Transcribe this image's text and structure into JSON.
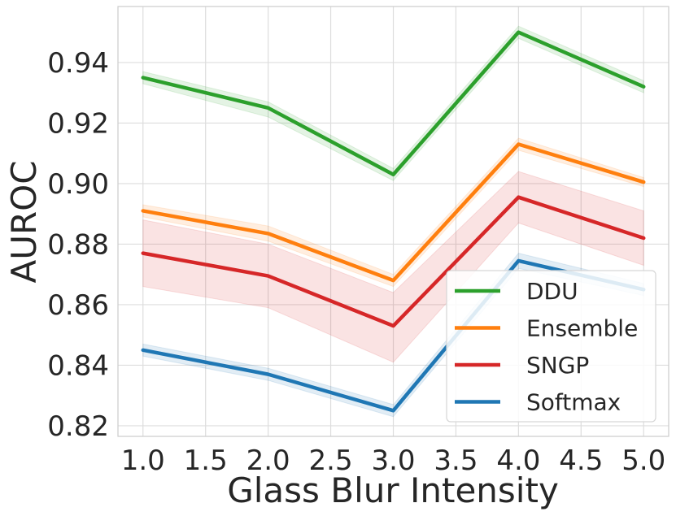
{
  "chart_data": {
    "type": "line",
    "title": "",
    "xlabel": "Glass Blur Intensity",
    "ylabel": "AUROC",
    "xlim": [
      0.8,
      5.2
    ],
    "ylim": [
      0.8165,
      0.9585
    ],
    "x": [
      1.0,
      2.0,
      3.0,
      4.0,
      5.0
    ],
    "xticks": [
      1.0,
      1.5,
      2.0,
      2.5,
      3.0,
      3.5,
      4.0,
      4.5,
      5.0
    ],
    "xtick_labels": [
      "1.0",
      "1.5",
      "2.0",
      "2.5",
      "3.0",
      "3.5",
      "4.0",
      "4.5",
      "5.0"
    ],
    "yticks": [
      0.82,
      0.84,
      0.86,
      0.88,
      0.9,
      0.92,
      0.94
    ],
    "ytick_labels": [
      "0.82",
      "0.84",
      "0.86",
      "0.88",
      "0.90",
      "0.92",
      "0.94"
    ],
    "grid": true,
    "legend_position": "bottom-right",
    "series": [
      {
        "name": "DDU",
        "color": "#2ca02c",
        "values": [
          0.935,
          0.925,
          0.903,
          0.95,
          0.932
        ],
        "lower": [
          0.933,
          0.922,
          0.901,
          0.948,
          0.93
        ],
        "upper": [
          0.937,
          0.927,
          0.905,
          0.952,
          0.934
        ]
      },
      {
        "name": "Ensemble",
        "color": "#ff7f0e",
        "values": [
          0.891,
          0.8835,
          0.868,
          0.913,
          0.9005
        ],
        "lower": [
          0.889,
          0.881,
          0.866,
          0.911,
          0.899
        ],
        "upper": [
          0.893,
          0.886,
          0.87,
          0.915,
          0.902
        ]
      },
      {
        "name": "SNGP",
        "color": "#d62728",
        "values": [
          0.877,
          0.8695,
          0.853,
          0.8955,
          0.882
        ],
        "lower": [
          0.866,
          0.859,
          0.841,
          0.887,
          0.873
        ],
        "upper": [
          0.888,
          0.88,
          0.864,
          0.904,
          0.891
        ]
      },
      {
        "name": "Softmax",
        "color": "#1f77b4",
        "values": [
          0.845,
          0.837,
          0.825,
          0.8745,
          0.865
        ],
        "lower": [
          0.843,
          0.835,
          0.823,
          0.872,
          0.863
        ],
        "upper": [
          0.847,
          0.839,
          0.827,
          0.877,
          0.867
        ]
      }
    ]
  }
}
